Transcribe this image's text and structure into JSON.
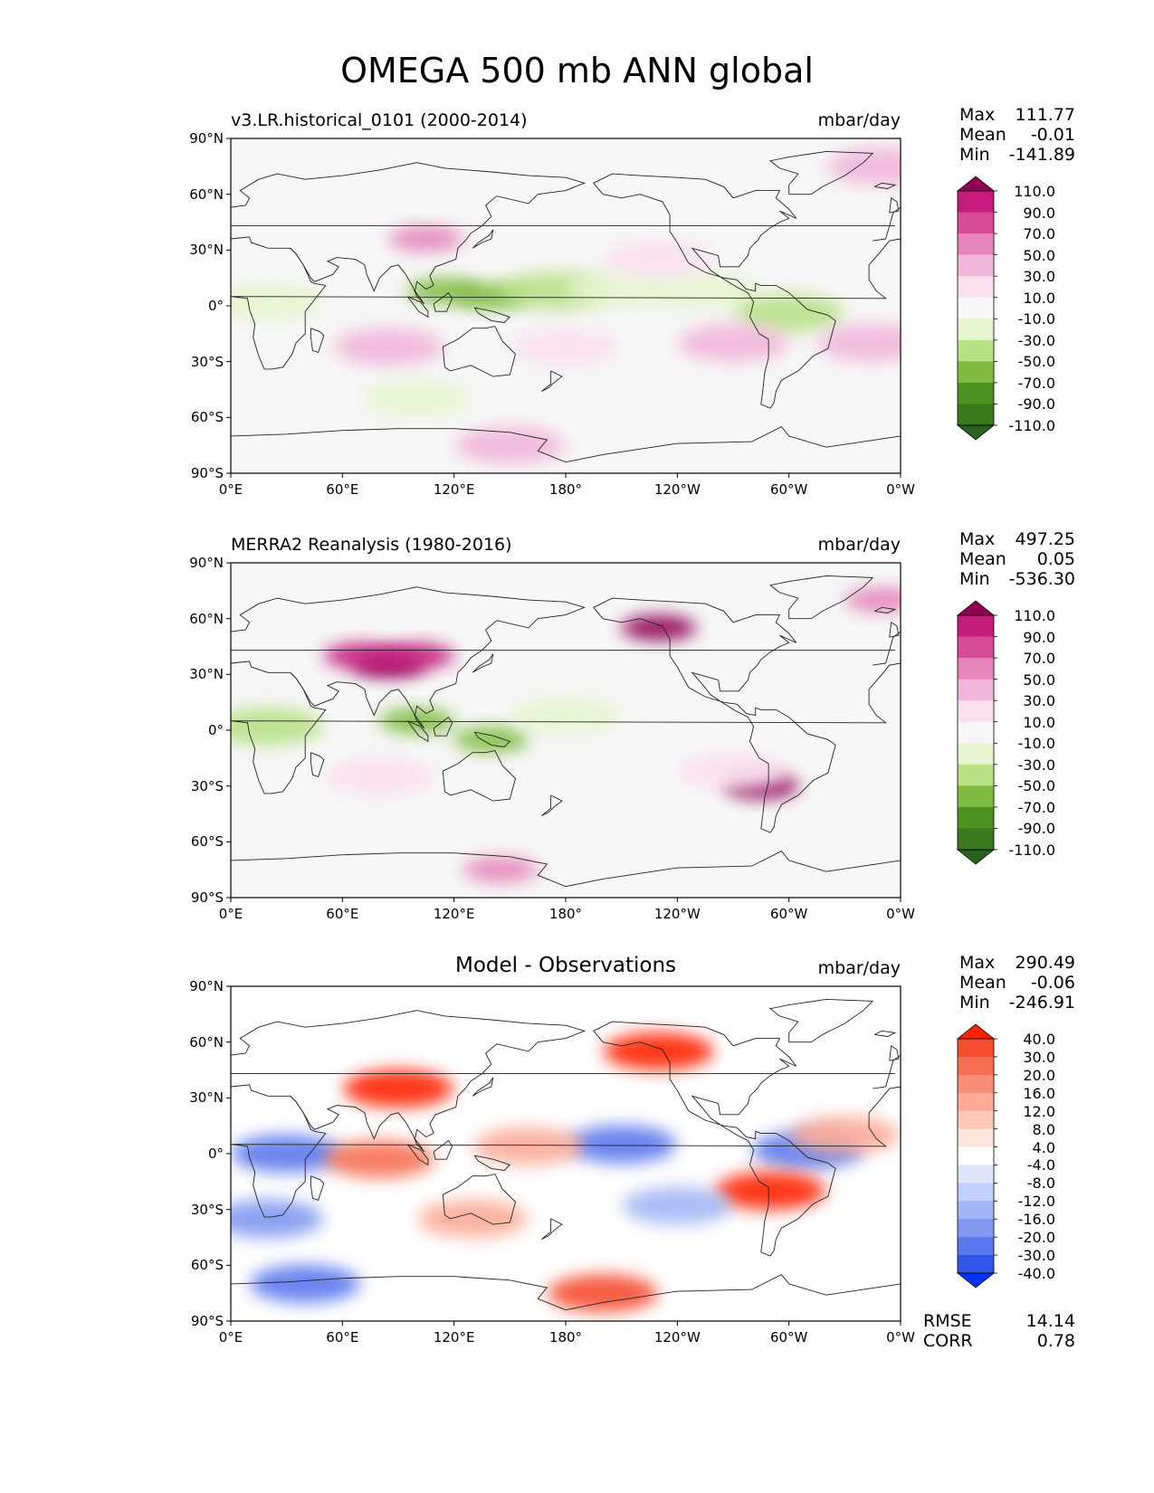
{
  "figure_title": "OMEGA 500 mb ANN global",
  "lon_ticks": [
    "0°E",
    "60°E",
    "120°E",
    "180°",
    "120°W",
    "60°W",
    "0°W"
  ],
  "lat_ticks": [
    "90°N",
    "60°N",
    "30°N",
    "0°",
    "30°S",
    "60°S",
    "90°S"
  ],
  "palettes": {
    "omega": {
      "levels": [
        "110.0",
        "90.0",
        "70.0",
        "50.0",
        "30.0",
        "10.0",
        "-10.0",
        "-30.0",
        "-50.0",
        "-70.0",
        "-90.0",
        "-110.0"
      ],
      "colors": [
        "#8e0152",
        "#c51b7d",
        "#d64a96",
        "#e585ba",
        "#f1b6da",
        "#fae0ef",
        "#f7f7f7",
        "#e6f5d0",
        "#b8e186",
        "#7fbc41",
        "#4d9221",
        "#3a7a1c",
        "#276419"
      ]
    },
    "diff": {
      "levels": [
        "40.0",
        "30.0",
        "20.0",
        "16.0",
        "12.0",
        "8.0",
        "4.0",
        "-4.0",
        "-8.0",
        "-12.0",
        "-16.0",
        "-20.0",
        "-30.0",
        "-40.0"
      ],
      "colors": [
        "#ff2200",
        "#f54b2f",
        "#f76f52",
        "#f98d75",
        "#fcaa96",
        "#fdc8b8",
        "#fee6dc",
        "#ffffff",
        "#dfe6fb",
        "#c2cff8",
        "#a2b5f4",
        "#8098f0",
        "#5a78ec",
        "#3356ea",
        "#0033ff"
      ]
    }
  },
  "panels": [
    {
      "id": "model",
      "left_label": "v3.LR.historical_0101 (2000-2014)",
      "center_label": "",
      "units": "mbar/day",
      "stats": [
        {
          "label": "Max",
          "value": "111.77"
        },
        {
          "label": "Mean",
          "value": "-0.01"
        },
        {
          "label": "Min",
          "value": "-141.89"
        }
      ],
      "palette": "omega"
    },
    {
      "id": "obs",
      "left_label": "MERRA2 Reanalysis (1980-2016)",
      "center_label": "",
      "units": "mbar/day",
      "stats": [
        {
          "label": "Max",
          "value": "497.25"
        },
        {
          "label": "Mean",
          "value": "0.05"
        },
        {
          "label": "Min",
          "value": "-536.30"
        }
      ],
      "palette": "omega"
    },
    {
      "id": "diff",
      "left_label": "",
      "center_label": "Model - Observations",
      "units": "mbar/day",
      "stats": [
        {
          "label": "Max",
          "value": "290.49"
        },
        {
          "label": "Mean",
          "value": "-0.06"
        },
        {
          "label": "Min",
          "value": "-246.91"
        }
      ],
      "palette": "diff",
      "metrics": [
        {
          "label": "RMSE",
          "value": "14.14"
        },
        {
          "label": "CORR",
          "value": "0.78"
        }
      ]
    }
  ],
  "chart_data": [
    {
      "type": "heatmap",
      "title": "v3.LR.historical_0101 (2000-2014)",
      "variable": "OMEGA 500 mb",
      "units": "mbar/day",
      "xlim": [
        0,
        360
      ],
      "ylim": [
        -90,
        90
      ],
      "xticks": [
        0,
        60,
        120,
        180,
        240,
        300,
        360
      ],
      "yticks": [
        90,
        60,
        30,
        0,
        -30,
        -60,
        -90
      ],
      "stats": {
        "max": 111.77,
        "mean": -0.01,
        "min": -141.89
      },
      "features": [
        {
          "lon": 115,
          "lat": 8,
          "value": -60
        },
        {
          "lon": 140,
          "lat": 5,
          "value": -55
        },
        {
          "lon": 175,
          "lat": 8,
          "value": -40
        },
        {
          "lon": 210,
          "lat": 9,
          "value": -25
        },
        {
          "lon": 255,
          "lat": 8,
          "value": -25
        },
        {
          "lon": 300,
          "lat": -4,
          "value": -40
        },
        {
          "lon": 20,
          "lat": 2,
          "value": -30
        },
        {
          "lon": 105,
          "lat": 36,
          "value": 60
        },
        {
          "lon": 85,
          "lat": -22,
          "value": 35
        },
        {
          "lon": 180,
          "lat": -22,
          "value": 25
        },
        {
          "lon": 270,
          "lat": -20,
          "value": 35
        },
        {
          "lon": 345,
          "lat": -20,
          "value": 35
        },
        {
          "lon": 230,
          "lat": 25,
          "value": 25
        },
        {
          "lon": 150,
          "lat": -75,
          "value": 45
        },
        {
          "lon": 100,
          "lat": -50,
          "value": -15
        },
        {
          "lon": 350,
          "lat": 75,
          "value": 40
        }
      ]
    },
    {
      "type": "heatmap",
      "title": "MERRA2 Reanalysis (1980-2016)",
      "variable": "OMEGA 500 mb",
      "units": "mbar/day",
      "xlim": [
        0,
        360
      ],
      "ylim": [
        -90,
        90
      ],
      "xticks": [
        0,
        60,
        120,
        180,
        240,
        300,
        360
      ],
      "yticks": [
        90,
        60,
        30,
        0,
        -30,
        -60,
        -90
      ],
      "stats": {
        "max": 497.25,
        "mean": 0.05,
        "min": -536.3
      },
      "features": [
        {
          "lon": 85,
          "lat": 35,
          "value": 110
        },
        {
          "lon": 100,
          "lat": 40,
          "value": 90
        },
        {
          "lon": 70,
          "lat": 40,
          "value": 100
        },
        {
          "lon": 140,
          "lat": -5,
          "value": -70
        },
        {
          "lon": 100,
          "lat": 5,
          "value": -60
        },
        {
          "lon": 230,
          "lat": 55,
          "value": 110
        },
        {
          "lon": 285,
          "lat": -30,
          "value": 110
        },
        {
          "lon": 180,
          "lat": 8,
          "value": -30
        },
        {
          "lon": 20,
          "lat": 2,
          "value": -40
        },
        {
          "lon": 350,
          "lat": 70,
          "value": 60
        },
        {
          "lon": 145,
          "lat": -75,
          "value": 60
        },
        {
          "lon": 80,
          "lat": -25,
          "value": 25
        },
        {
          "lon": 270,
          "lat": -22,
          "value": 25
        }
      ]
    },
    {
      "type": "heatmap",
      "title": "Model - Observations",
      "variable": "OMEGA 500 mb",
      "units": "mbar/day",
      "xlim": [
        0,
        360
      ],
      "ylim": [
        -90,
        90
      ],
      "xticks": [
        0,
        60,
        120,
        180,
        240,
        300,
        360
      ],
      "yticks": [
        90,
        60,
        30,
        0,
        -30,
        -60,
        -90
      ],
      "stats": {
        "max": 290.49,
        "mean": -0.06,
        "min": -246.91,
        "rmse": 14.14,
        "corr": 0.78
      },
      "features": [
        {
          "lon": 210,
          "lat": 5,
          "value": -25
        },
        {
          "lon": 310,
          "lat": 2,
          "value": -30
        },
        {
          "lon": 30,
          "lat": 0,
          "value": -25
        },
        {
          "lon": 80,
          "lat": -3,
          "value": 25
        },
        {
          "lon": 160,
          "lat": 4,
          "value": 15
        },
        {
          "lon": 290,
          "lat": -20,
          "value": 40
        },
        {
          "lon": 90,
          "lat": 35,
          "value": 40
        },
        {
          "lon": 230,
          "lat": 55,
          "value": 40
        },
        {
          "lon": 200,
          "lat": -75,
          "value": 35
        },
        {
          "lon": 40,
          "lat": -70,
          "value": -30
        },
        {
          "lon": 240,
          "lat": -28,
          "value": -15
        },
        {
          "lon": 20,
          "lat": -35,
          "value": -20
        },
        {
          "lon": 330,
          "lat": 10,
          "value": 15
        },
        {
          "lon": 130,
          "lat": -35,
          "value": 12
        }
      ]
    }
  ]
}
